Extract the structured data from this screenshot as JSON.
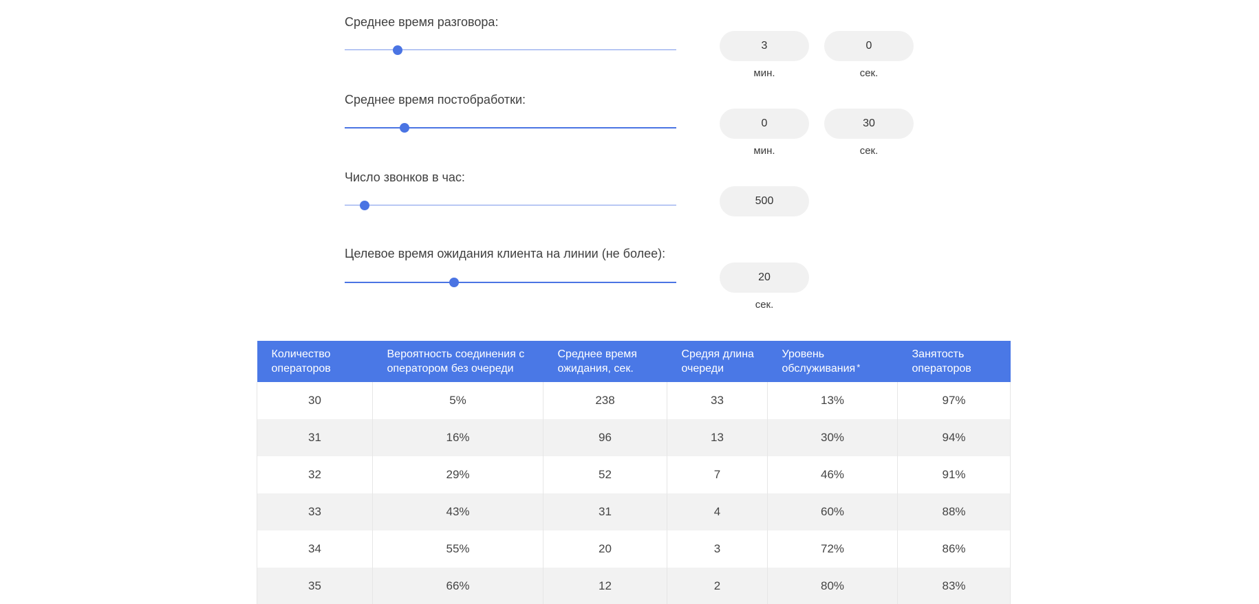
{
  "sliders": {
    "talk": {
      "label": "Среднее время разговора:",
      "level": 0.16,
      "minutes": "3",
      "seconds": "0",
      "unit_min": "мин.",
      "unit_sec": "сек."
    },
    "wrapup": {
      "label": "Среднее время постобработки:",
      "level": 0.18,
      "minutes": "0",
      "seconds": "30",
      "unit_min": "мин.",
      "unit_sec": "сек."
    },
    "calls": {
      "label": "Число звонков в час:",
      "level": 0.06,
      "value": "500"
    },
    "wait": {
      "label": "Целевое время ожидания клиента на линии (не более):",
      "level": 0.33,
      "value": "20",
      "unit_sec": "сек."
    }
  },
  "table": {
    "headers": [
      "Количество операторов",
      "Вероятность соединения с оператором без очереди",
      "Среднее время ожидания, сек.",
      "Средяя длина очереди",
      "Уровень обслуживания",
      "Занятость операторов"
    ],
    "service_level_mark": "*",
    "rows": [
      [
        "30",
        "5%",
        "238",
        "33",
        "13%",
        "97%"
      ],
      [
        "31",
        "16%",
        "96",
        "13",
        "30%",
        "94%"
      ],
      [
        "32",
        "29%",
        "52",
        "7",
        "46%",
        "91%"
      ],
      [
        "33",
        "43%",
        "31",
        "4",
        "60%",
        "88%"
      ],
      [
        "34",
        "55%",
        "20",
        "3",
        "72%",
        "86%"
      ],
      [
        "35",
        "66%",
        "12",
        "2",
        "80%",
        "83%"
      ]
    ]
  },
  "colors": {
    "accent": "#4a74e3",
    "header_bg": "#4a78e6",
    "input_bg": "#f1f1f1",
    "row_alt": "#f2f2f2"
  }
}
